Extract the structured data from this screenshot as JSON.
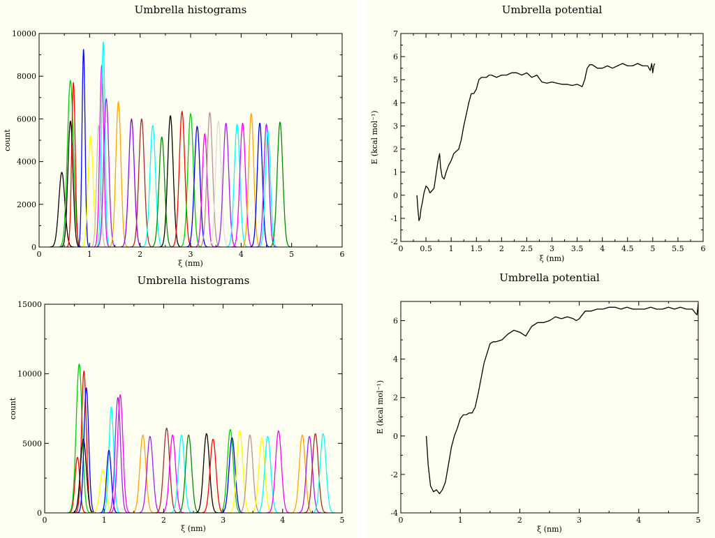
{
  "chart_data": [
    {
      "type": "line",
      "title": "Umbrella histograms",
      "xlabel": "ξ (nm)",
      "ylabel": "count",
      "xlim": [
        0,
        6
      ],
      "ylim": [
        0,
        10000
      ],
      "xticks": [
        "0",
        "1",
        "2",
        "3",
        "4",
        "5",
        "6"
      ],
      "yticks": [
        "0",
        "2000",
        "4000",
        "6000",
        "8000",
        "10000"
      ],
      "grid": false,
      "series": [
        {
          "color": "#000000",
          "center": 0.45,
          "peak": 3500,
          "sigma": 0.06
        },
        {
          "color": "#00cc00",
          "center": 0.62,
          "peak": 7800,
          "sigma": 0.06
        },
        {
          "color": "#ff0000",
          "center": 0.68,
          "peak": 7700,
          "sigma": 0.035
        },
        {
          "color": "#000000",
          "center": 0.62,
          "peak": 5900,
          "sigma": 0.05
        },
        {
          "color": "#0000ff",
          "center": 0.88,
          "peak": 9250,
          "sigma": 0.03
        },
        {
          "color": "#ffff00",
          "center": 1.02,
          "peak": 5200,
          "sigma": 0.05
        },
        {
          "color": "#bebebe",
          "center": 1.18,
          "peak": 5700,
          "sigma": 0.04
        },
        {
          "color": "#ff00ff",
          "center": 1.24,
          "peak": 8500,
          "sigma": 0.04
        },
        {
          "color": "#00ffff",
          "center": 1.27,
          "peak": 9600,
          "sigma": 0.035
        },
        {
          "color": "#a020f0",
          "center": 1.33,
          "peak": 6950,
          "sigma": 0.05
        },
        {
          "color": "#ffa500",
          "center": 1.57,
          "peak": 6800,
          "sigma": 0.05
        },
        {
          "color": "#8b00ff",
          "center": 1.83,
          "peak": 6000,
          "sigma": 0.055
        },
        {
          "color": "#a52a2a",
          "center": 2.03,
          "peak": 6000,
          "sigma": 0.055
        },
        {
          "color": "#00ffff",
          "center": 2.25,
          "peak": 5700,
          "sigma": 0.055
        },
        {
          "color": "#008b00",
          "center": 2.43,
          "peak": 5150,
          "sigma": 0.055
        },
        {
          "color": "#000000",
          "center": 2.6,
          "peak": 6150,
          "sigma": 0.055
        },
        {
          "color": "#ff0000",
          "center": 2.83,
          "peak": 6350,
          "sigma": 0.055
        },
        {
          "color": "#00cc00",
          "center": 3.0,
          "peak": 6250,
          "sigma": 0.055
        },
        {
          "color": "#0000ff",
          "center": 3.13,
          "peak": 5650,
          "sigma": 0.055
        },
        {
          "color": "#ff00ff",
          "center": 3.28,
          "peak": 5300,
          "sigma": 0.05
        },
        {
          "color": "#bc8f8f",
          "center": 3.38,
          "peak": 6300,
          "sigma": 0.055
        },
        {
          "color": "#dcdcdc",
          "center": 3.55,
          "peak": 5900,
          "sigma": 0.055
        },
        {
          "color": "#a020f0",
          "center": 3.7,
          "peak": 5800,
          "sigma": 0.055
        },
        {
          "color": "#00ffff",
          "center": 3.92,
          "peak": 5750,
          "sigma": 0.055
        },
        {
          "color": "#ff00ff",
          "center": 4.03,
          "peak": 5800,
          "sigma": 0.055
        },
        {
          "color": "#ffa500",
          "center": 4.2,
          "peak": 6250,
          "sigma": 0.05
        },
        {
          "color": "#0000ff",
          "center": 4.37,
          "peak": 5800,
          "sigma": 0.05
        },
        {
          "color": "#a020f0",
          "center": 4.5,
          "peak": 5750,
          "sigma": 0.05
        },
        {
          "color": "#00ffff",
          "center": 4.53,
          "peak": 5450,
          "sigma": 0.05
        },
        {
          "color": "#008b00",
          "center": 4.77,
          "peak": 5850,
          "sigma": 0.055
        }
      ]
    },
    {
      "type": "line",
      "title": "Umbrella potential",
      "xlabel": "ξ (nm)",
      "ylabel": "E (kcal mol⁻¹)",
      "xlim": [
        0,
        6
      ],
      "ylim": [
        -2,
        7
      ],
      "xticks": [
        "0",
        "0.5",
        "1",
        "1.5",
        "2",
        "2.5",
        "3",
        "3.5",
        "4",
        "4.5",
        "5",
        "5.5",
        "6"
      ],
      "yticks": [
        "-2",
        "-1",
        "0",
        "1",
        "2",
        "3",
        "4",
        "5",
        "6",
        "7"
      ],
      "grid": false,
      "series": [
        {
          "color": "#000000",
          "x": [
            0.32,
            0.34,
            0.36,
            0.38,
            0.4,
            0.43,
            0.46,
            0.5,
            0.54,
            0.58,
            0.62,
            0.66,
            0.7,
            0.74,
            0.77,
            0.79,
            0.82,
            0.86,
            0.9,
            0.95,
            1.0,
            1.05,
            1.1,
            1.15,
            1.2,
            1.25,
            1.3,
            1.35,
            1.4,
            1.45,
            1.5,
            1.55,
            1.6,
            1.65,
            1.7,
            1.75,
            1.8,
            1.9,
            2.0,
            2.1,
            2.2,
            2.3,
            2.4,
            2.5,
            2.6,
            2.7,
            2.8,
            2.9,
            3.0,
            3.1,
            3.2,
            3.3,
            3.4,
            3.5,
            3.6,
            3.65,
            3.7,
            3.75,
            3.8,
            3.9,
            4.0,
            4.1,
            4.2,
            4.3,
            4.4,
            4.5,
            4.6,
            4.7,
            4.8,
            4.9,
            4.95,
            4.98,
            5.0,
            5.02,
            5.04
          ],
          "y": [
            0.0,
            -0.6,
            -1.1,
            -1.0,
            -0.6,
            -0.3,
            0.1,
            0.4,
            0.3,
            0.1,
            0.2,
            0.3,
            0.9,
            1.5,
            1.8,
            1.2,
            0.8,
            0.7,
            1.0,
            1.3,
            1.5,
            1.8,
            1.9,
            2.0,
            2.4,
            3.0,
            3.5,
            4.0,
            4.4,
            4.4,
            4.6,
            5.0,
            5.1,
            5.1,
            5.1,
            5.2,
            5.2,
            5.1,
            5.2,
            5.2,
            5.3,
            5.3,
            5.2,
            5.3,
            5.1,
            5.2,
            4.9,
            4.85,
            4.9,
            4.85,
            4.8,
            4.8,
            4.75,
            4.8,
            4.7,
            5.0,
            5.5,
            5.65,
            5.65,
            5.5,
            5.5,
            5.6,
            5.5,
            5.6,
            5.7,
            5.6,
            5.6,
            5.7,
            5.6,
            5.6,
            5.4,
            5.7,
            5.3,
            5.6,
            5.7
          ]
        }
      ]
    },
    {
      "type": "line",
      "title": "Umbrella histograms",
      "xlabel": "ξ (nm)",
      "ylabel": "count",
      "xlim": [
        0,
        5
      ],
      "ylim": [
        0,
        15000
      ],
      "xticks": [
        "0",
        "1",
        "2",
        "3",
        "4",
        "5"
      ],
      "yticks": [
        "0",
        "5000",
        "10000",
        "15000"
      ],
      "grid": false,
      "series": [
        {
          "color": "#ff0000",
          "center": 0.55,
          "peak": 4000,
          "sigma": 0.04
        },
        {
          "color": "#00cc00",
          "center": 0.58,
          "peak": 10700,
          "sigma": 0.05
        },
        {
          "color": "#ff0000",
          "center": 0.66,
          "peak": 10200,
          "sigma": 0.04
        },
        {
          "color": "#000000",
          "center": 0.65,
          "peak": 5300,
          "sigma": 0.05
        },
        {
          "color": "#0000ff",
          "center": 0.7,
          "peak": 9000,
          "sigma": 0.04
        },
        {
          "color": "#ffff00",
          "center": 0.98,
          "peak": 3100,
          "sigma": 0.05
        },
        {
          "color": "#00ffff",
          "center": 1.12,
          "peak": 7600,
          "sigma": 0.04
        },
        {
          "color": "#0000ff",
          "center": 1.08,
          "peak": 4500,
          "sigma": 0.04
        },
        {
          "color": "#a020f0",
          "center": 1.23,
          "peak": 8300,
          "sigma": 0.045
        },
        {
          "color": "#ff00ff",
          "center": 1.27,
          "peak": 8500,
          "sigma": 0.045
        },
        {
          "color": "#ffa500",
          "center": 1.65,
          "peak": 5600,
          "sigma": 0.05
        },
        {
          "color": "#a020f0",
          "center": 1.77,
          "peak": 5500,
          "sigma": 0.05
        },
        {
          "color": "#a52a2a",
          "center": 2.05,
          "peak": 6100,
          "sigma": 0.05
        },
        {
          "color": "#ff00ff",
          "center": 2.15,
          "peak": 5600,
          "sigma": 0.05
        },
        {
          "color": "#00ffff",
          "center": 2.3,
          "peak": 5600,
          "sigma": 0.05
        },
        {
          "color": "#008b00",
          "center": 2.42,
          "peak": 5600,
          "sigma": 0.05
        },
        {
          "color": "#000000",
          "center": 2.72,
          "peak": 5700,
          "sigma": 0.05
        },
        {
          "color": "#ff0000",
          "center": 2.83,
          "peak": 5300,
          "sigma": 0.05
        },
        {
          "color": "#00cc00",
          "center": 3.12,
          "peak": 6000,
          "sigma": 0.05
        },
        {
          "color": "#0000ff",
          "center": 3.15,
          "peak": 5400,
          "sigma": 0.05
        },
        {
          "color": "#ffff00",
          "center": 3.28,
          "peak": 5900,
          "sigma": 0.05
        },
        {
          "color": "#bc8f8f",
          "center": 3.45,
          "peak": 5600,
          "sigma": 0.05
        },
        {
          "color": "#ffff00",
          "center": 3.65,
          "peak": 5400,
          "sigma": 0.05
        },
        {
          "color": "#00ffff",
          "center": 3.75,
          "peak": 5500,
          "sigma": 0.05
        },
        {
          "color": "#ff00ff",
          "center": 3.93,
          "peak": 5900,
          "sigma": 0.05
        },
        {
          "color": "#ffa500",
          "center": 4.33,
          "peak": 5600,
          "sigma": 0.05
        },
        {
          "color": "#a020f0",
          "center": 4.45,
          "peak": 5500,
          "sigma": 0.05
        },
        {
          "color": "#a52a2a",
          "center": 4.55,
          "peak": 5700,
          "sigma": 0.05
        },
        {
          "color": "#00ffff",
          "center": 4.68,
          "peak": 5700,
          "sigma": 0.05
        }
      ]
    },
    {
      "type": "line",
      "title": "Umbrella potential",
      "xlabel": "ξ (nm)",
      "ylabel": "E (kcal mol⁻¹)",
      "xlim": [
        0,
        5
      ],
      "ylim": [
        -4,
        7
      ],
      "xticks": [
        "0",
        "1",
        "2",
        "3",
        "4",
        "5"
      ],
      "yticks": [
        "-4",
        "-2",
        "0",
        "2",
        "4",
        "6"
      ],
      "grid": false,
      "series": [
        {
          "color": "#000000",
          "x": [
            0.43,
            0.46,
            0.5,
            0.55,
            0.6,
            0.65,
            0.7,
            0.75,
            0.8,
            0.85,
            0.9,
            0.95,
            1.0,
            1.05,
            1.1,
            1.15,
            1.2,
            1.25,
            1.3,
            1.35,
            1.4,
            1.45,
            1.5,
            1.55,
            1.6,
            1.7,
            1.8,
            1.9,
            2.0,
            2.1,
            2.2,
            2.3,
            2.4,
            2.5,
            2.6,
            2.7,
            2.8,
            2.9,
            2.95,
            3.0,
            3.1,
            3.2,
            3.3,
            3.4,
            3.5,
            3.6,
            3.7,
            3.8,
            3.9,
            4.0,
            4.1,
            4.2,
            4.3,
            4.4,
            4.5,
            4.6,
            4.7,
            4.8,
            4.9,
            4.95,
            4.98,
            5.0
          ],
          "y": [
            0.0,
            -1.5,
            -2.6,
            -2.9,
            -2.8,
            -3.0,
            -2.8,
            -2.4,
            -1.5,
            -0.6,
            0.0,
            0.4,
            0.9,
            1.1,
            1.1,
            1.2,
            1.2,
            1.5,
            2.2,
            3.0,
            3.8,
            4.3,
            4.8,
            4.9,
            4.9,
            5.0,
            5.3,
            5.5,
            5.4,
            5.2,
            5.7,
            5.9,
            5.9,
            6.0,
            6.2,
            6.1,
            6.2,
            6.1,
            6.0,
            6.1,
            6.5,
            6.5,
            6.6,
            6.6,
            6.7,
            6.7,
            6.6,
            6.7,
            6.6,
            6.6,
            6.6,
            6.7,
            6.6,
            6.6,
            6.7,
            6.6,
            6.7,
            6.6,
            6.6,
            6.4,
            6.3,
            6.9
          ]
        }
      ]
    }
  ]
}
